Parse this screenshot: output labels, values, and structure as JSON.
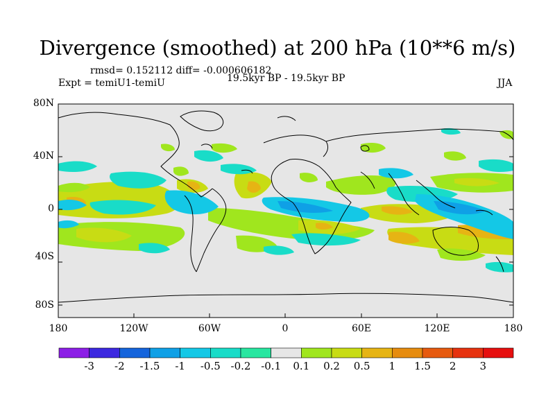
{
  "title": "Divergence (smoothed) at 200 hPa (10**6 m/s)",
  "stats_label": "rmsd= 0.152112 diff= -0.000606182",
  "expt_label": "Expt = temiU1-temiU",
  "period_label": "19.5kyr BP - 19.5kyr BP",
  "season_label": "JJA",
  "y_axis_ticks": [
    "80N",
    "40N",
    "0",
    "40S",
    "80S"
  ],
  "x_axis_ticks": [
    "180",
    "120W",
    "60W",
    "0",
    "60E",
    "120E",
    "180"
  ],
  "colorbar": {
    "labels": [
      "-3",
      "-2",
      "-1.5",
      "-1",
      "-0.5",
      "-0.2",
      "-0.1",
      "0.1",
      "0.2",
      "0.5",
      "1",
      "1.5",
      "2",
      "3"
    ],
    "colors": [
      "#8c1ee6",
      "#3c28e0",
      "#1464dc",
      "#0fa0e6",
      "#14c8e6",
      "#19dcc8",
      "#28e6a0",
      "#e6e6e6",
      "#a0e61e",
      "#c8dc14",
      "#e6b414",
      "#e68c0f",
      "#e65a0f",
      "#e6320f",
      "#e60f0f"
    ]
  },
  "map_background": "#e6e6e6"
}
